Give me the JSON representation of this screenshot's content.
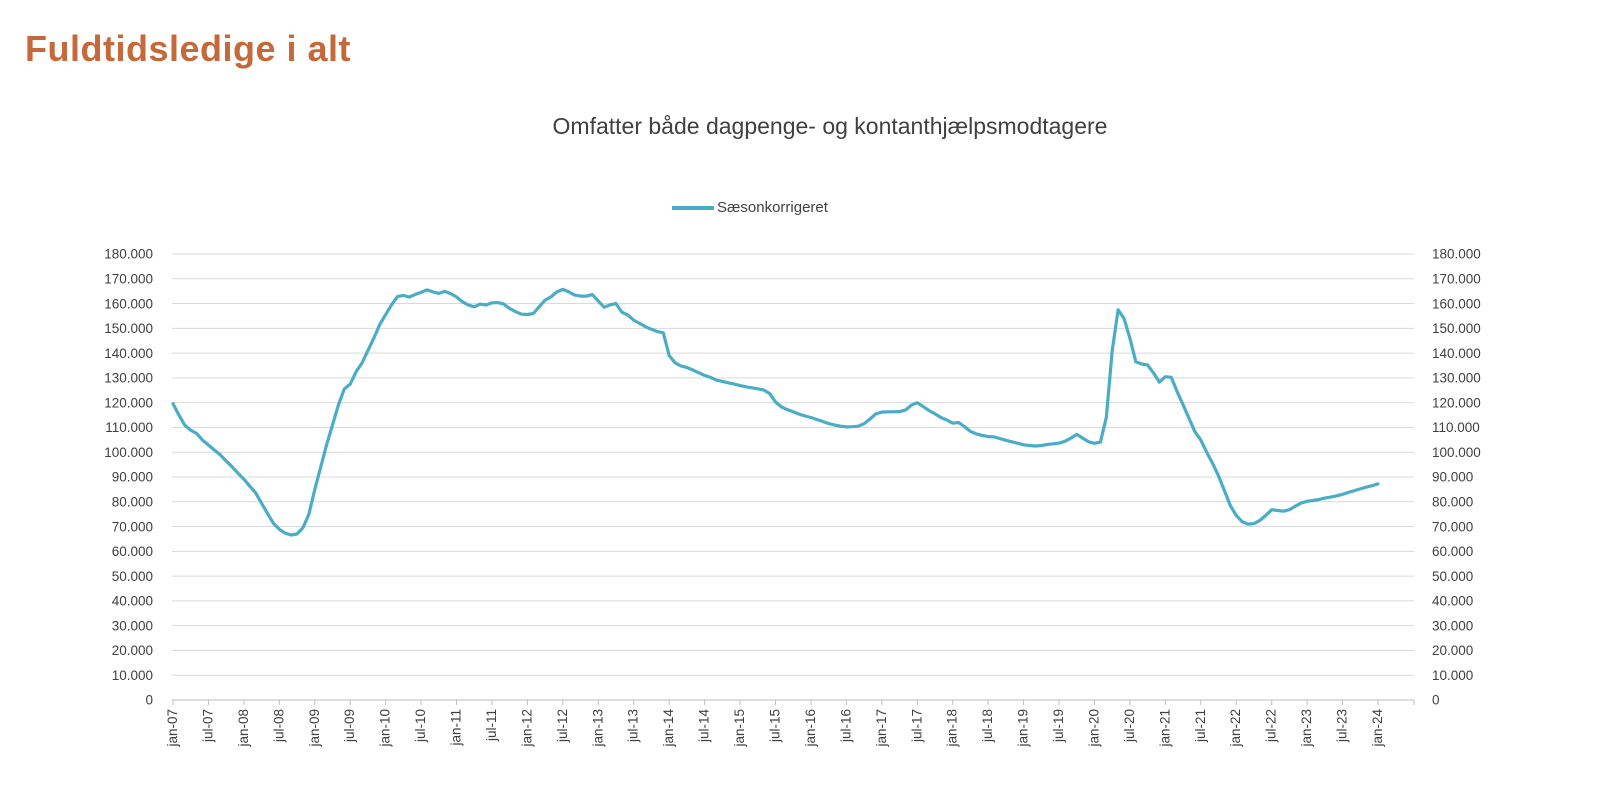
{
  "page": {
    "title": "Fuldtidsledige i alt"
  },
  "legend": {
    "series_label": "Sæsonkorrigeret"
  },
  "colors": {
    "title": "#C5693B",
    "line": "#4BACC6",
    "grid": "#D9D9D9",
    "axis": "#BFBFBF",
    "text": "#404040"
  },
  "chart_data": {
    "type": "line",
    "title": "Omfatter både dagpenge- og kontanthjælpsmodtagere",
    "series_name": "Sæsonkorrigeret",
    "line_color": "#4BACC6",
    "grid": "horizontal",
    "legend_position": "top-center",
    "ylim": [
      0,
      180000
    ],
    "y_tick_step": 10000,
    "y_tick_labels": [
      "0",
      "10.000",
      "20.000",
      "30.000",
      "40.000",
      "50.000",
      "60.000",
      "70.000",
      "80.000",
      "90.000",
      "100.000",
      "110.000",
      "120.000",
      "130.000",
      "140.000",
      "150.000",
      "160.000",
      "170.000",
      "180.000"
    ],
    "y_axis_sides": "both",
    "x_tick_every_months": 6,
    "x_tick_labels": [
      "jan-07",
      "jul-07",
      "jan-08",
      "jul-08",
      "jan-09",
      "jul-09",
      "jan-10",
      "jul-10",
      "jan-11",
      "jul-11",
      "jan-12",
      "jul-12",
      "jan-13",
      "jul-13",
      "jan-14",
      "jul-14",
      "jan-15",
      "jul-15",
      "jan-16",
      "jul-16",
      "jan-17",
      "jul-17",
      "jan-18",
      "jul-18",
      "jan-19",
      "jul-19",
      "jan-20",
      "jul-20",
      "jan-21",
      "jul-21",
      "jan-22",
      "jul-22",
      "jan-23",
      "jul-23",
      "jan-24"
    ],
    "x_start": "jan-07",
    "x_end": "jan-24",
    "values": [
      119600,
      115000,
      110900,
      108900,
      107600,
      104900,
      102900,
      100900,
      98900,
      96400,
      94100,
      91500,
      89100,
      86300,
      83600,
      79400,
      75300,
      71300,
      68900,
      67300,
      66600,
      67000,
      69500,
      75000,
      85000,
      94000,
      103000,
      111000,
      119000,
      125500,
      127500,
      132500,
      136000,
      141000,
      146000,
      151500,
      155500,
      159500,
      162800,
      163300,
      162600,
      163700,
      164500,
      165500,
      164700,
      164100,
      164900,
      164000,
      162700,
      160700,
      159400,
      158700,
      159800,
      159400,
      160300,
      160400,
      159800,
      158000,
      156700,
      155700,
      155600,
      156000,
      158700,
      161400,
      162700,
      164700,
      165700,
      164700,
      163400,
      163000,
      163000,
      163600,
      161000,
      158500,
      159500,
      160000,
      156500,
      155400,
      153300,
      152000,
      150600,
      149600,
      148700,
      148200,
      139000,
      136100,
      134800,
      134200,
      133200,
      132100,
      131000,
      130200,
      129100,
      128600,
      128000,
      127500,
      126900,
      126400,
      126000,
      125600,
      125100,
      123700,
      120300,
      118300,
      117200,
      116300,
      115400,
      114600,
      114000,
      113200,
      112400,
      111600,
      111000,
      110500,
      110200,
      110300,
      110500,
      111500,
      113400,
      115500,
      116200,
      116300,
      116300,
      116400,
      117000,
      119000,
      120000,
      118400,
      116800,
      115500,
      114000,
      113000,
      111700,
      112000,
      110300,
      108400,
      107400,
      106800,
      106300,
      106200,
      105500,
      104800,
      104200,
      103600,
      103000,
      102700,
      102500,
      102700,
      103100,
      103400,
      103700,
      104400,
      105700,
      107200,
      105700,
      104200,
      103600,
      104100,
      114000,
      141000,
      157500,
      154000,
      146000,
      136500,
      135600,
      135200,
      132000,
      128300,
      130500,
      130200,
      124400,
      119100,
      113700,
      108300,
      104900,
      100000,
      95500,
      90500,
      84500,
      78500,
      74500,
      72000,
      71000,
      71200,
      72500,
      74500,
      76800,
      76500,
      76200,
      76800,
      78200,
      79500,
      80200,
      80500,
      80900,
      81500,
      81900,
      82400,
      83000,
      83800,
      84500,
      85200,
      85900,
      86500,
      87200
    ]
  }
}
